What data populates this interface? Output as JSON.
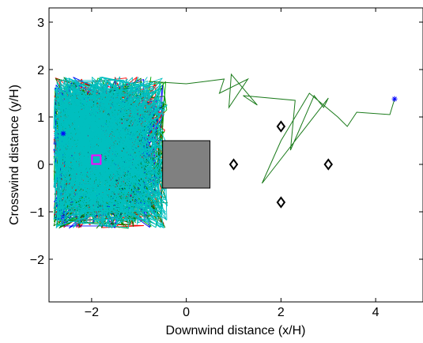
{
  "chart_data": {
    "type": "scatter",
    "title": "",
    "xlabel": "Downwind distance (x/H)",
    "ylabel": "Crosswind distance (y/H)",
    "xlim": [
      -2.9,
      5.0
    ],
    "ylim": [
      -2.9,
      3.3
    ],
    "xticks": [
      -2,
      0,
      2,
      4
    ],
    "xtick_labels": [
      "−2",
      "0",
      "2",
      "4"
    ],
    "yticks": [
      -2,
      -1,
      0,
      1,
      2,
      3
    ],
    "ytick_labels": [
      "−2",
      "−1",
      "0",
      "1",
      "2",
      "3"
    ],
    "grid": false,
    "legend": "none",
    "obstacle": {
      "x": [
        -0.5,
        0.5
      ],
      "y": [
        -0.5,
        0.5
      ],
      "color": "#808080"
    },
    "sensors": {
      "marker": "diamond",
      "color": "#000000",
      "points": [
        [
          1,
          0
        ],
        [
          2,
          0.8
        ],
        [
          2,
          -0.8
        ],
        [
          3,
          0
        ]
      ]
    },
    "source_marker": {
      "x": -1.9,
      "y": 0.1,
      "color": "#ff00ff",
      "marker": "square"
    },
    "start_markers": {
      "marker": "star",
      "color": "#0000ff",
      "points": [
        [
          -2.6,
          0.65
        ],
        [
          4.4,
          1.38
        ]
      ]
    },
    "dense_region": {
      "x": [
        -2.8,
        -0.4
      ],
      "y": [
        -1.35,
        1.85
      ]
    },
    "series": [
      {
        "color": "#ff0000"
      },
      {
        "color": "#00aa00"
      },
      {
        "color": "#0000ff"
      },
      {
        "color": "#007700"
      },
      {
        "color": "#00bfbf"
      }
    ],
    "long_trajectory": {
      "color": "#1a7a1a",
      "points": [
        [
          -0.8,
          1.75
        ],
        [
          0.0,
          1.7
        ],
        [
          0.8,
          1.8
        ],
        [
          0.7,
          1.5
        ],
        [
          1.3,
          1.8
        ],
        [
          0.9,
          1.2
        ],
        [
          0.95,
          1.9
        ],
        [
          1.5,
          1.25
        ],
        [
          1.2,
          1.45
        ],
        [
          2.3,
          1.35
        ],
        [
          2.2,
          0.3
        ],
        [
          2.7,
          1.45
        ],
        [
          2.9,
          1.2
        ],
        [
          3.0,
          1.4
        ],
        [
          1.6,
          -0.4
        ],
        [
          2.0,
          0.5
        ],
        [
          2.6,
          1.5
        ],
        [
          3.2,
          1.0
        ],
        [
          3.4,
          0.8
        ],
        [
          3.6,
          1.1
        ],
        [
          4.3,
          1.05
        ],
        [
          4.4,
          1.38
        ]
      ]
    }
  }
}
